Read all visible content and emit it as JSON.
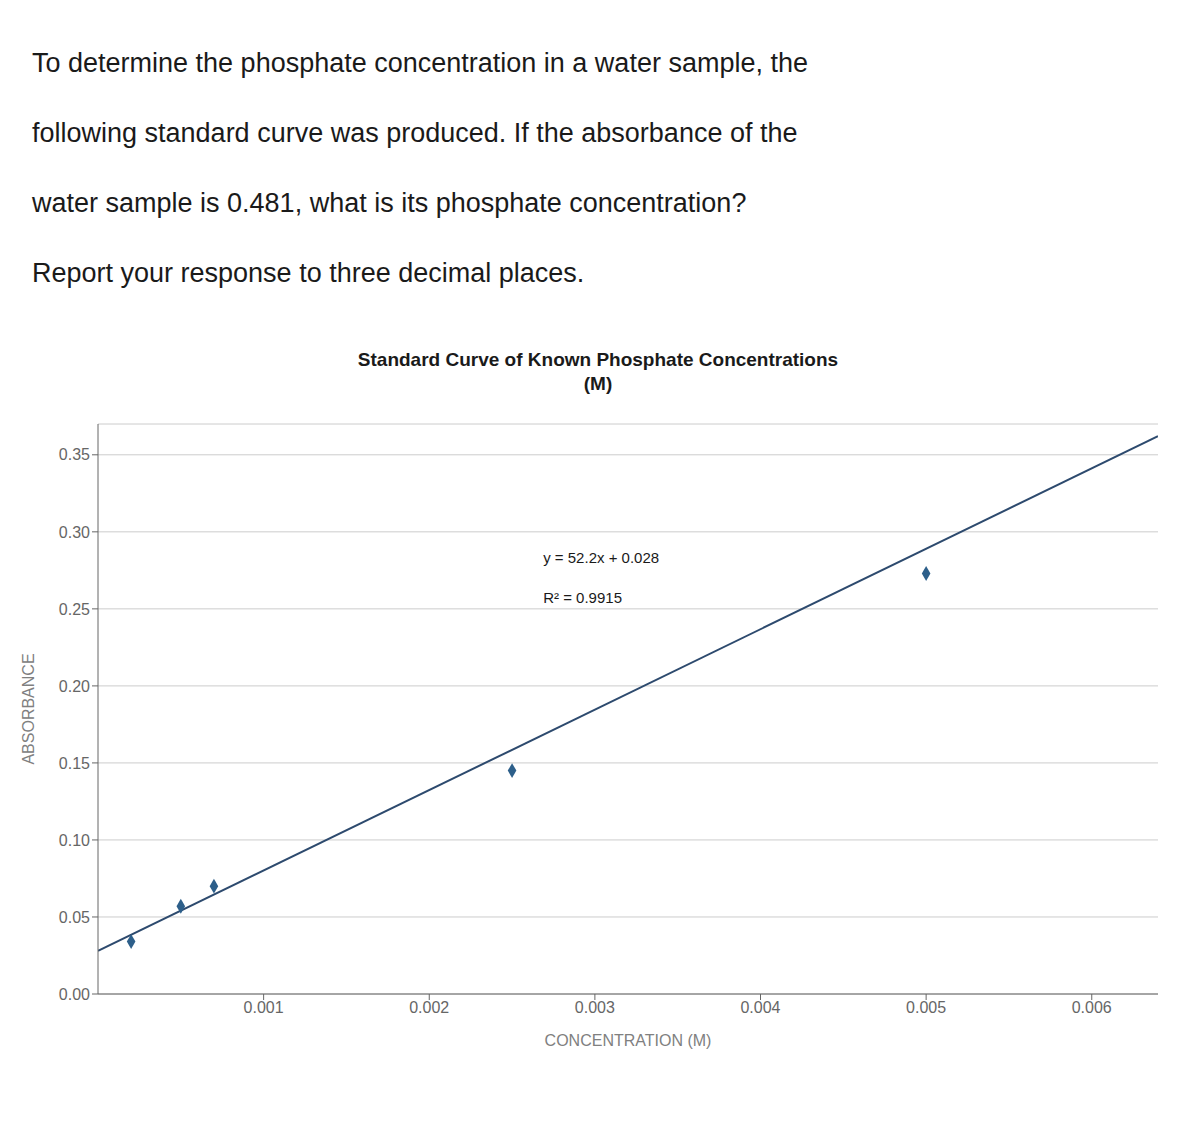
{
  "chart_data": {
    "type": "scatter",
    "title": "Standard Curve of Known Phosphate Concentrations",
    "subtitle": "(M)",
    "x_label": "CONCENTRATION (M)",
    "y_label": "ABSORBANCE",
    "annotations": [
      "To determine the phosphate concentration in a water sample, the",
      "following standard curve was produced. If the absorbance of the",
      "water sample is 0.481, what is its phosphate concentration?",
      "Report your response to three decimal places.",
      "y = 52.2x + 0.028",
      "R² = 0.9915"
    ],
    "series": [
      {
        "type": "scatter",
        "color": "#2d5f8a",
        "marker": "diamond",
        "x": [
          0.0002,
          0.0005,
          0.0007,
          0.0025,
          0.005
        ],
        "values": [
          0.034,
          0.057,
          0.07,
          0.145,
          0.273
        ]
      },
      {
        "type": "line",
        "color": "#2d4a6e",
        "line_style": "solid",
        "x": [
          0,
          0.0064
        ],
        "values": [
          0.028,
          0.36208
        ]
      }
    ],
    "xlim": [
      0,
      0.0064
    ],
    "ylim": [
      0,
      0.37
    ],
    "xticks": [
      0.001,
      0.002,
      0.003,
      0.004,
      0.005,
      0.006
    ],
    "yticks": [
      {
        "value": 0,
        "label": "0.00"
      },
      0.05,
      {
        "value": 0.1,
        "label": "0.10"
      },
      0.15,
      {
        "value": 0.2,
        "label": "0.20"
      },
      0.25,
      {
        "value": 0.3,
        "label": "0.30"
      },
      0.35
    ],
    "grid": "y"
  }
}
